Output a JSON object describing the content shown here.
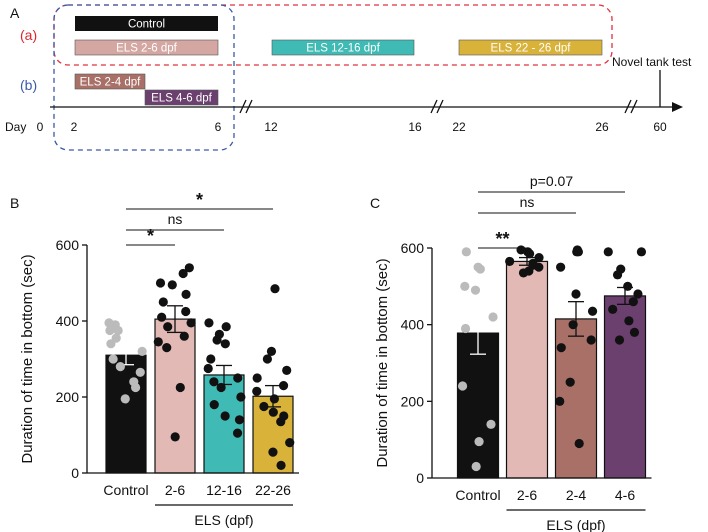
{
  "panel_labels": {
    "a": "A",
    "b": "B",
    "c": "C"
  },
  "timeline": {
    "group_labels": {
      "a": "(a)",
      "b": "(b)"
    },
    "bars": [
      {
        "label": "Control",
        "color": "#111111"
      },
      {
        "label": "ELS 2-6 dpf",
        "color": "#d4a7a2"
      },
      {
        "label": "ELS 12-16 dpf",
        "color": "#3fbab4"
      },
      {
        "label": "ELS 22 - 26 dpf",
        "color": "#d9b23a"
      },
      {
        "label": "ELS 2-4 dpf",
        "color": "#a97068"
      },
      {
        "label": "ELS 4-6 dpf",
        "color": "#6b3f6e"
      }
    ],
    "day_label": "Day",
    "days": [
      "0",
      "2",
      "6",
      "12",
      "16",
      "22",
      "26",
      "60"
    ],
    "novel_tank": "Novel tank test",
    "group_a_border_color": "#e0323c",
    "group_b_border_color": "#3a5aa8"
  },
  "chart_data": [
    {
      "type": "bar",
      "panel": "B",
      "categories": [
        "Control",
        "2-6",
        "12-16",
        "22-26"
      ],
      "values": [
        310,
        405,
        258,
        202
      ],
      "sem": [
        25,
        35,
        25,
        28
      ],
      "colors": [
        "#111111",
        "#e2b9b5",
        "#3fbab4",
        "#d9b23a"
      ],
      "ylabel": "Duration of time in bottom (sec)",
      "xlabel": "ELS (dpf)",
      "ylim": [
        0,
        600
      ],
      "yticks": [
        0,
        200,
        400,
        600
      ],
      "points": [
        [
          395,
          390,
          375,
          375,
          355,
          340,
          320,
          300,
          280,
          265,
          240,
          225,
          195
        ],
        [
          540,
          525,
          500,
          495,
          470,
          450,
          425,
          410,
          395,
          385,
          360,
          345,
          330,
          225,
          95
        ],
        [
          395,
          385,
          365,
          350,
          340,
          300,
          275,
          250,
          240,
          225,
          200,
          180,
          150,
          140,
          105
        ],
        [
          485,
          320,
          300,
          270,
          250,
          230,
          215,
          195,
          175,
          160,
          150,
          135,
          80,
          55,
          20
        ]
      ],
      "point_colors": [
        "#bbbbbb",
        "#111111",
        "#111111",
        "#111111"
      ],
      "brackets": [
        {
          "from": 0,
          "to": 1,
          "label": "*"
        },
        {
          "from": 0,
          "to": 2,
          "label": "ns"
        },
        {
          "from": 0,
          "to": 3,
          "label": "*"
        }
      ]
    },
    {
      "type": "bar",
      "panel": "C",
      "categories": [
        "Control",
        "2-6",
        "2-4",
        "4-6"
      ],
      "values": [
        378,
        565,
        415,
        475
      ],
      "sem": [
        55,
        10,
        45,
        22
      ],
      "colors": [
        "#111111",
        "#e2b9b5",
        "#a97068",
        "#6b3f6e"
      ],
      "ylabel": "Duration of time in bottom (sec)",
      "xlabel": "ELS (dpf)",
      "ylim": [
        0,
        600
      ],
      "yticks": [
        0,
        200,
        400,
        600
      ],
      "points": [
        [
          590,
          550,
          545,
          500,
          490,
          420,
          390,
          240,
          140,
          95,
          30
        ],
        [
          595,
          590,
          585,
          575,
          565,
          560,
          555,
          550,
          540,
          535
        ],
        [
          595,
          590,
          590,
          550,
          480,
          435,
          400,
          360,
          340,
          250,
          200,
          90
        ],
        [
          590,
          590,
          545,
          530,
          500,
          480,
          460,
          440,
          410,
          380,
          360
        ]
      ],
      "point_colors": [
        "#bbbbbb",
        "#111111",
        "#111111",
        "#111111"
      ],
      "brackets": [
        {
          "from": 0,
          "to": 1,
          "label": "**"
        },
        {
          "from": 0,
          "to": 2,
          "label": "ns"
        },
        {
          "from": 0,
          "to": 3,
          "label": "p=0.07"
        }
      ]
    }
  ]
}
